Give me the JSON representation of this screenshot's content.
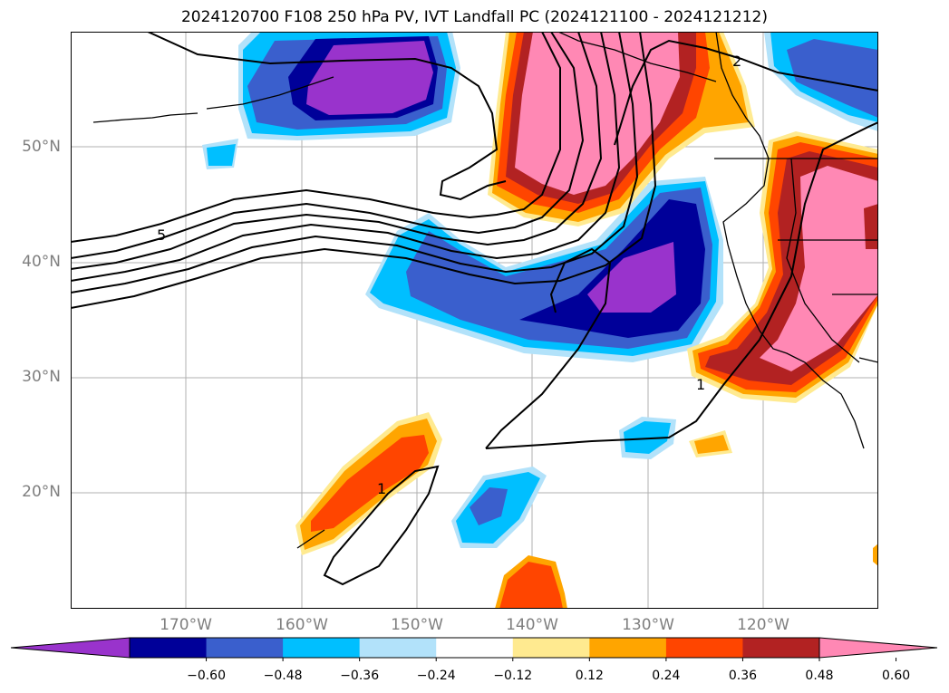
{
  "title": "2024120700 F108 250 hPa PV, IVT Landfall PC (2024121100 - 2024121212)",
  "lat_labels": [
    "50°N",
    "40°N",
    "30°N",
    "20°N"
  ],
  "lon_labels": [
    "170°W",
    "160°W",
    "150°W",
    "140°W",
    "130°W",
    "120°W"
  ],
  "contour_labels": [
    "5",
    "2",
    "1",
    "1"
  ],
  "colorbar": {
    "tick_labels": [
      "−0.60",
      "−0.48",
      "−0.36",
      "−0.24",
      "−0.12",
      "0.12",
      "0.24",
      "0.36",
      "0.48",
      "0.60"
    ],
    "colors": [
      "#9933cc",
      "#000099",
      "#3a5fcd",
      "#00bfff",
      "#b2e2fa",
      "#ffffff",
      "#ffea90",
      "#ffa500",
      "#ff4500",
      "#b22222",
      "#ff88b4"
    ]
  },
  "chart_data": {
    "type": "contourf map",
    "region": "North Pacific",
    "lat_range": [
      10,
      60
    ],
    "lon_range": [
      -180,
      -110
    ],
    "grid": true,
    "filled_levels": [
      -0.6,
      -0.48,
      -0.36,
      -0.24,
      -0.12,
      0.12,
      0.24,
      0.36,
      0.48,
      0.6
    ],
    "line_contour_labels": [
      5,
      2,
      1,
      1
    ],
    "colorbar_position": "bottom",
    "colorbar_extend": "both"
  }
}
